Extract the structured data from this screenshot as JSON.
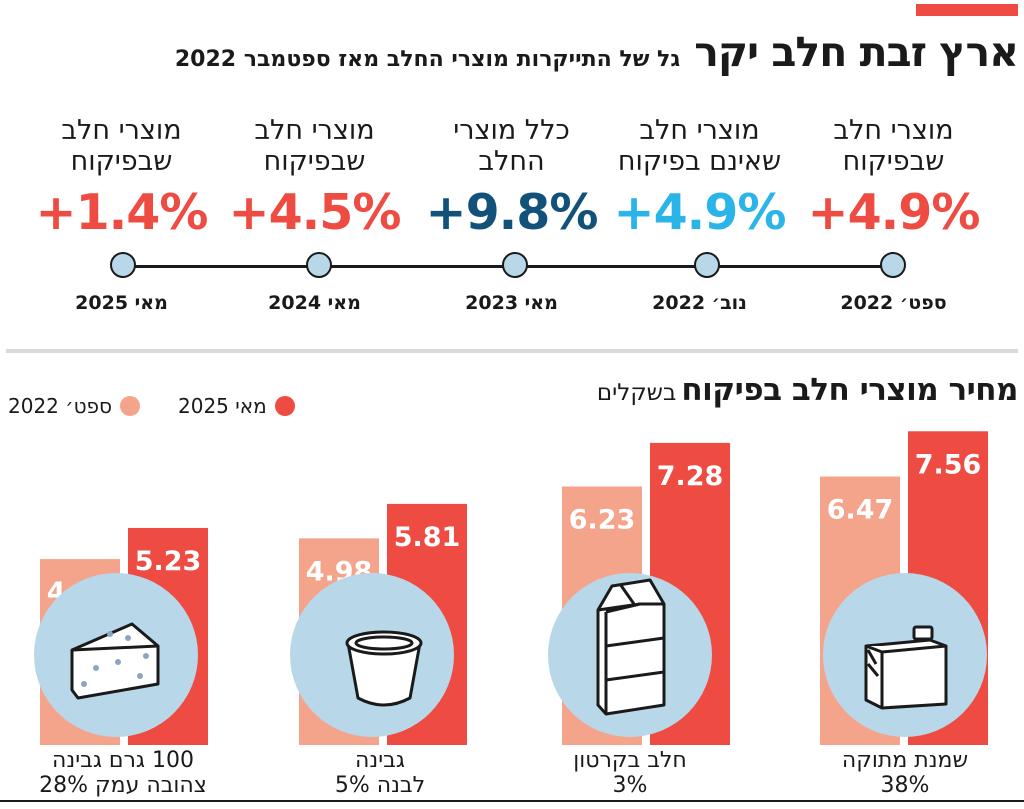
{
  "header": {
    "title": "ארץ זבת חלב יקר",
    "subtitle": "גל של התייקרות מוצרי החלב מאז ספטמבר 2022"
  },
  "timeline": [
    {
      "label": "מוצרי חלב שבפיקוח",
      "value": "+4.9%",
      "date": "ספט׳ 2022",
      "color": "#ee4b43"
    },
    {
      "label": "מוצרי חלב שאינם בפיקוח",
      "value": "+4.9%",
      "date": "נוב׳ 2022",
      "color": "#2ab4e8"
    },
    {
      "label": "כלל מוצרי החלב",
      "value": "+9.8%",
      "date": "מאי 2023",
      "color": "#12527a"
    },
    {
      "label": "מוצרי חלב שבפיקוח",
      "value": "+4.5%",
      "date": "מאי 2024",
      "color": "#ee4b43"
    },
    {
      "label": "מוצרי חלב שבפיקוח",
      "value": "+1.4%",
      "date": "מאי 2025",
      "color": "#ee4b43"
    }
  ],
  "section": {
    "title": "מחיר מוצרי חלב בפיקוח",
    "unit": "בשקלים"
  },
  "legend": {
    "series_2025": "מאי 2025",
    "series_2022": "ספט׳ 2022"
  },
  "colors": {
    "light": "#f5a48c",
    "dark": "#ee4b43",
    "icon_circle": "#b8d8ea"
  },
  "chart_data": {
    "type": "bar",
    "title": "מחיר מוצרי חלב בפיקוח",
    "ylabel": "בשקלים",
    "categories": [
      "שמנת מתוקה 38%",
      "חלב בקרטון 3%",
      "גבינה לבנה 5%",
      "100 גרם גבינה צהובה עמק 28%"
    ],
    "category_lines": [
      [
        "שמנת מתוקה",
        "38%"
      ],
      [
        "חלב בקרטון",
        "3%"
      ],
      [
        "גבינה",
        "לבנה 5%"
      ],
      [
        "100 גרם גבינה",
        "צהובה עמק 28%"
      ]
    ],
    "icons": [
      "cream-carton-icon",
      "milk-carton-icon",
      "cottage-cheese-cup-icon",
      "cheese-wedge-icon"
    ],
    "series": [
      {
        "name": "ספט׳ 2022",
        "values": [
          6.47,
          6.23,
          4.98,
          4.48
        ]
      },
      {
        "name": "מאי 2025",
        "values": [
          7.56,
          7.28,
          5.81,
          5.23
        ]
      }
    ],
    "ylim": [
      0,
      10
    ]
  }
}
